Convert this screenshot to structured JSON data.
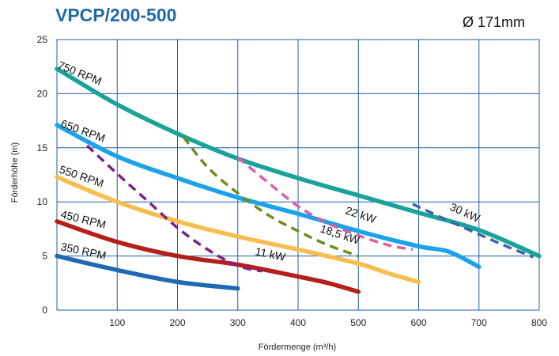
{
  "header": {
    "title": "VPCP/200-500",
    "diameter": "Ø 171mm"
  },
  "chart_data": {
    "type": "line",
    "xlabel": "Fördermenge (m³/h)",
    "ylabel": "Förderhöhe (m)",
    "xlim": [
      0,
      800
    ],
    "ylim": [
      0,
      25
    ],
    "xticks": [
      100,
      200,
      300,
      400,
      500,
      600,
      700,
      800
    ],
    "yticks": [
      0,
      5,
      10,
      15,
      20,
      25
    ],
    "grid": true,
    "series": [
      {
        "name": "750 RPM",
        "color": "#1aa39a",
        "style": "solid",
        "x": [
          0,
          100,
          200,
          300,
          400,
          500,
          600,
          700,
          800
        ],
        "y": [
          22.3,
          19.0,
          16.3,
          14.0,
          12.2,
          10.6,
          9.0,
          7.4,
          5.0
        ]
      },
      {
        "name": "650 RPM",
        "color": "#1aa3e8",
        "style": "solid",
        "x": [
          0,
          100,
          200,
          300,
          400,
          500,
          600,
          650,
          700
        ],
        "y": [
          17.1,
          14.2,
          12.2,
          10.4,
          8.9,
          7.3,
          5.9,
          5.4,
          4.0
        ]
      },
      {
        "name": "550 RPM",
        "color": "#f7bd4f",
        "style": "solid",
        "x": [
          0,
          100,
          200,
          300,
          400,
          500,
          550,
          600
        ],
        "y": [
          12.3,
          10.0,
          8.2,
          6.8,
          5.6,
          4.3,
          3.4,
          2.6
        ]
      },
      {
        "name": "450 RPM",
        "color": "#b41f1a",
        "style": "solid",
        "x": [
          0,
          100,
          200,
          300,
          400,
          450,
          500
        ],
        "y": [
          8.2,
          6.3,
          5.0,
          4.2,
          3.1,
          2.5,
          1.7
        ]
      },
      {
        "name": "350 RPM",
        "color": "#1f69b2",
        "style": "solid",
        "x": [
          0,
          100,
          200,
          300
        ],
        "y": [
          5.0,
          3.7,
          2.6,
          2.0
        ]
      },
      {
        "name": "11 kW",
        "color": "#7a2288",
        "style": "dashed",
        "x": [
          50,
          100,
          150,
          200,
          250,
          300,
          340
        ],
        "y": [
          15.2,
          12.6,
          10.1,
          7.6,
          5.6,
          4.1,
          3.6
        ]
      },
      {
        "name": "18,5 kW",
        "color": "#6b8e23",
        "style": "dashed",
        "x": [
          210,
          250,
          300,
          350,
          400,
          450,
          500
        ],
        "y": [
          16.0,
          13.2,
          10.8,
          8.8,
          7.3,
          6.0,
          5.0
        ]
      },
      {
        "name": "22 kW",
        "color": "#db5fa5",
        "style": "dashed",
        "x": [
          300,
          350,
          400,
          450,
          500,
          550,
          590
        ],
        "y": [
          14.1,
          11.8,
          9.6,
          8.0,
          6.9,
          6.0,
          5.6
        ]
      },
      {
        "name": "30 kW",
        "color": "#3f62a8",
        "style": "dashed",
        "x": [
          590,
          640,
          700,
          750,
          790
        ],
        "y": [
          9.8,
          8.5,
          7.0,
          5.8,
          4.9
        ]
      }
    ]
  }
}
